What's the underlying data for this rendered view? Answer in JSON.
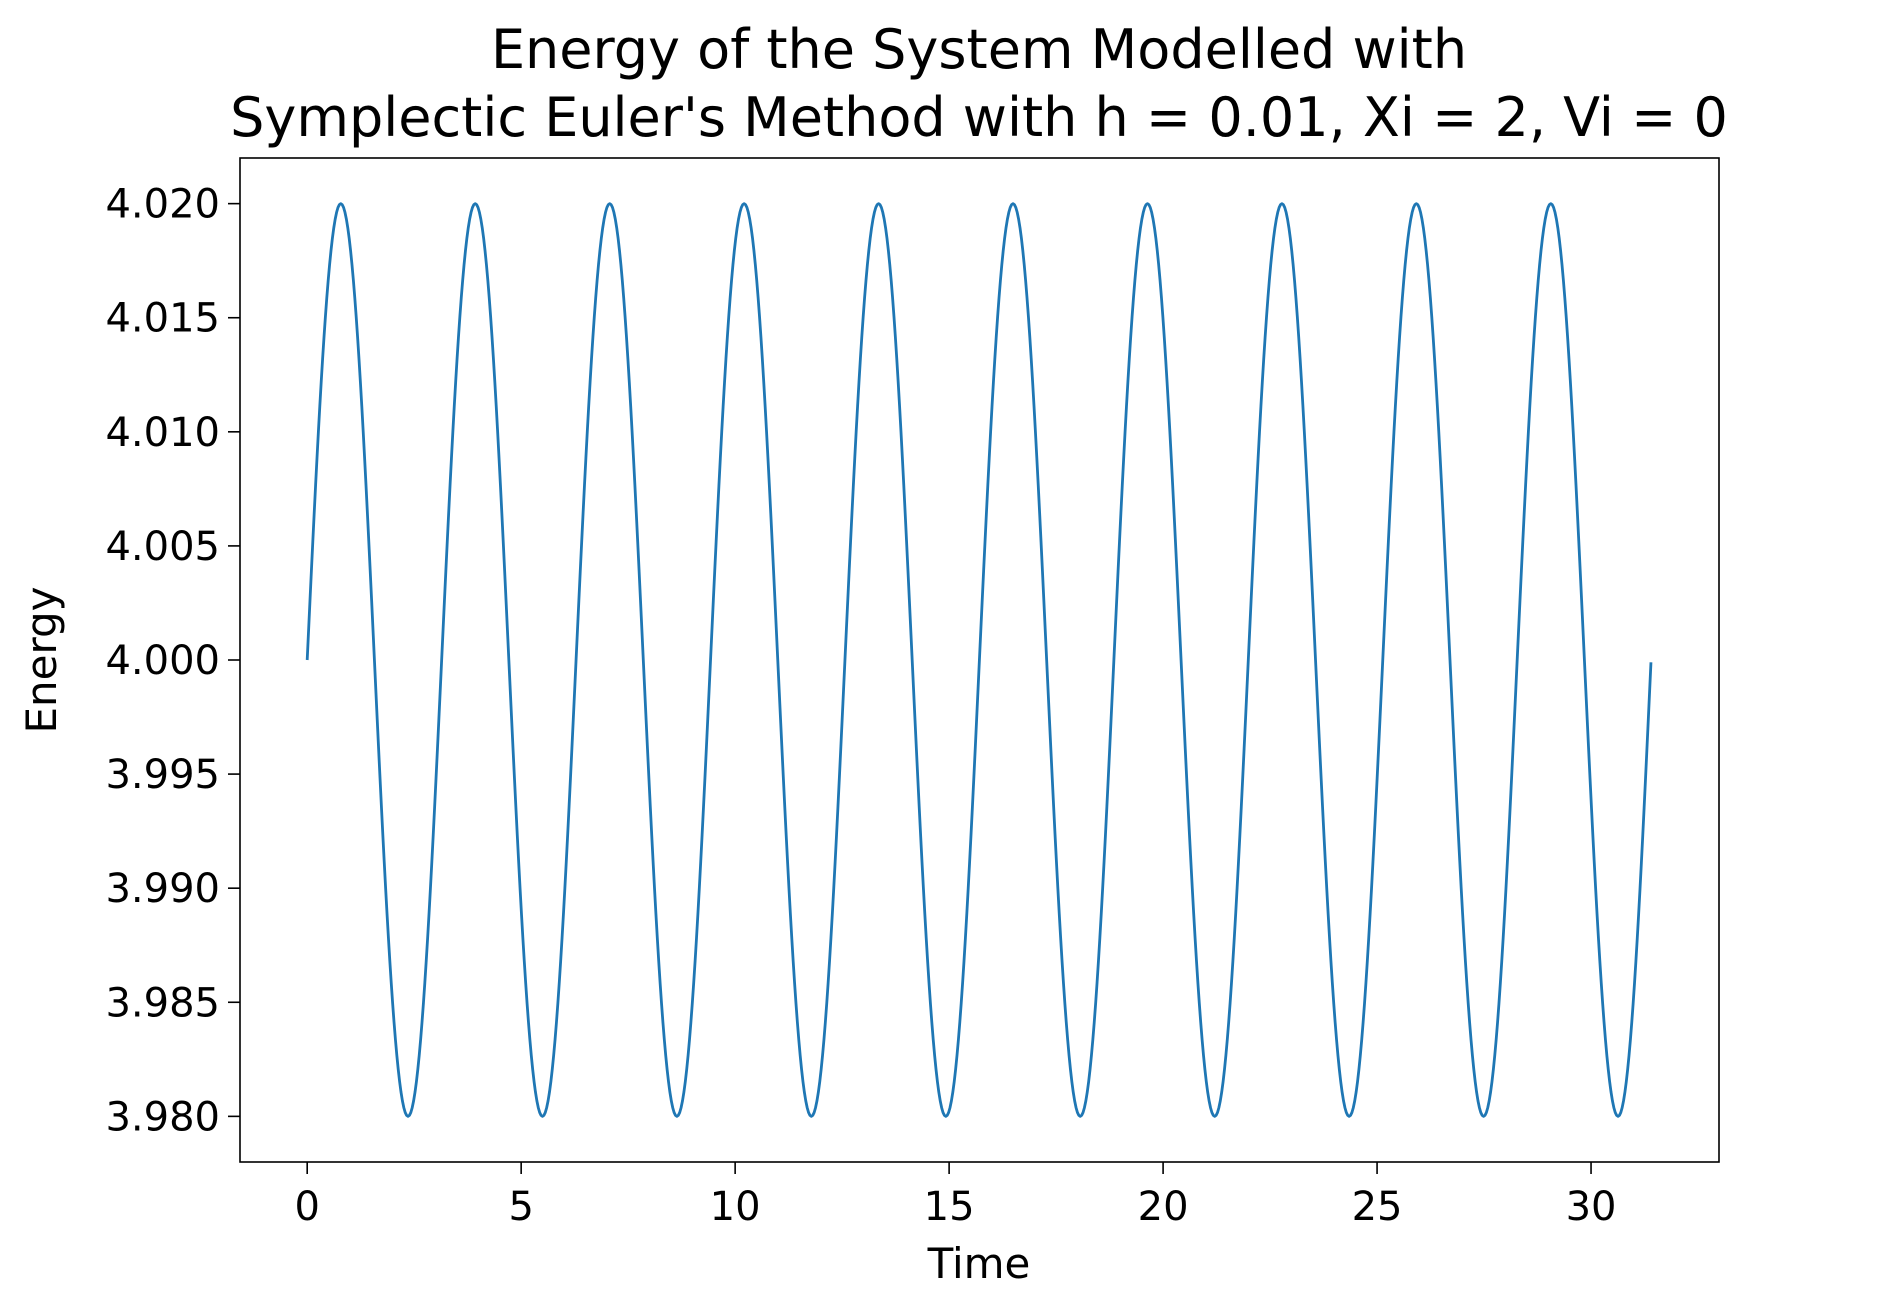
{
  "chart_data": {
    "type": "line",
    "title_line1": "Energy of the System Modelled with",
    "title_line2": "Symplectic Euler's Method with h = 0.01, Xi = 2, Vi = 0",
    "xlabel": "Time",
    "ylabel": "Energy",
    "xlim": [
      -1.57,
      32.99
    ],
    "ylim": [
      3.978,
      4.022
    ],
    "xticks": [
      0,
      5,
      10,
      15,
      20,
      25,
      30
    ],
    "xtick_labels": [
      "0",
      "5",
      "10",
      "15",
      "20",
      "25",
      "30"
    ],
    "yticks": [
      3.98,
      3.985,
      3.99,
      3.995,
      4.0,
      4.005,
      4.01,
      4.015,
      4.02
    ],
    "ytick_labels": [
      "3.980",
      "3.985",
      "3.990",
      "3.995",
      "4.000",
      "4.005",
      "4.010",
      "4.015",
      "4.020"
    ],
    "grid": false,
    "line_color": "#1f77b4",
    "series": [
      {
        "x": [
          0.0,
          0.785,
          1.571,
          2.356,
          3.142,
          3.927,
          4.712,
          5.498,
          6.283,
          7.069,
          7.854,
          8.639,
          9.425,
          10.21,
          10.996,
          11.781,
          12.566,
          13.352,
          14.137,
          14.923,
          15.708,
          16.493,
          17.279,
          18.064,
          18.85,
          19.635,
          20.42,
          21.206,
          21.991,
          22.777,
          23.562,
          24.347,
          25.133,
          25.918,
          26.704,
          27.489,
          28.274,
          29.06,
          29.845,
          30.631,
          31.4
        ],
        "y": [
          4.0,
          4.02,
          4.0,
          3.98,
          4.0,
          4.02,
          4.0,
          3.98,
          4.0,
          4.02,
          4.0,
          3.98,
          4.0,
          4.02,
          4.0,
          3.98,
          4.0,
          4.02,
          4.0,
          3.98,
          4.0,
          4.02,
          4.0,
          3.98,
          4.0,
          4.02,
          4.0,
          3.98,
          4.0,
          4.02,
          4.0,
          3.98,
          4.0,
          4.02,
          4.0,
          3.98,
          4.0,
          4.02,
          4.0,
          3.98,
          3.9999
        ]
      }
    ]
  }
}
